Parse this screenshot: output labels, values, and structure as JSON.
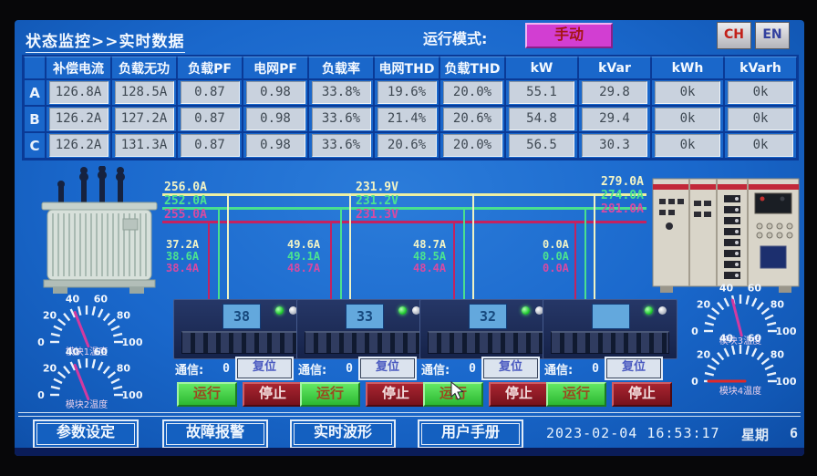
{
  "header": {
    "title": "状态监控>>实时数据",
    "run_mode_label": "运行模式:",
    "run_mode_value": "手动",
    "lang": [
      {
        "label": "CH"
      },
      {
        "label": "EN"
      }
    ]
  },
  "table": {
    "phases": [
      "A",
      "B",
      "C"
    ],
    "columns": [
      "补偿电流",
      "负载无功",
      "负载PF",
      "电网PF",
      "负载率",
      "电网THD",
      "负载THD",
      "kW",
      "kVar",
      "kWh",
      "kVarh"
    ],
    "rows": [
      [
        "126.8A",
        "128.5A",
        "0.87",
        "0.98",
        "33.8%",
        "19.6%",
        "20.0%",
        "55.1",
        "29.8",
        "0k",
        "0k"
      ],
      [
        "126.2A",
        "127.2A",
        "0.87",
        "0.98",
        "33.6%",
        "21.4%",
        "20.6%",
        "54.8",
        "29.4",
        "0k",
        "0k"
      ],
      [
        "126.2A",
        "131.3A",
        "0.87",
        "0.98",
        "33.6%",
        "20.6%",
        "20.0%",
        "56.5",
        "30.3",
        "0k",
        "0k"
      ]
    ]
  },
  "diagram": {
    "incoming_currents": [
      "256.0A",
      "252.0A",
      "255.0A"
    ],
    "bus_voltages": [
      "231.9V",
      "231.2V",
      "231.3V"
    ],
    "outgoing_currents": [
      "279.0A",
      "274.0A",
      "281.0A"
    ],
    "branch_currents": [
      [
        "37.2A",
        "38.6A",
        "38.4A"
      ],
      [
        "49.6A",
        "49.1A",
        "48.7A"
      ],
      [
        "48.7A",
        "48.5A",
        "48.4A"
      ],
      [
        "0.0A",
        "0.0A",
        "0.0A"
      ]
    ]
  },
  "modules": [
    {
      "display": "38",
      "comm_label": "通信:",
      "comm_value": "0",
      "reset_label": "复位",
      "run_label": "运行",
      "stop_label": "停止"
    },
    {
      "display": "33",
      "comm_label": "通信:",
      "comm_value": "0",
      "reset_label": "复位",
      "run_label": "运行",
      "stop_label": "停止"
    },
    {
      "display": "32",
      "comm_label": "通信:",
      "comm_value": "0",
      "reset_label": "复位",
      "run_label": "运行",
      "stop_label": "停止"
    },
    {
      "display": "",
      "comm_label": "通信:",
      "comm_value": "0",
      "reset_label": "复位",
      "run_label": "运行",
      "stop_label": "停止"
    }
  ],
  "gauges": [
    {
      "name": "模块1温度",
      "value": 38,
      "needle_color": "#d23aa0",
      "scale": [
        "0",
        "20",
        "40",
        "60",
        "80",
        "100"
      ]
    },
    {
      "name": "模块2温度",
      "value": 38,
      "needle_color": "#d23aa0",
      "scale": [
        "0",
        "20",
        "40",
        "60",
        "80",
        "100"
      ]
    },
    {
      "name": "模块3温度",
      "value": 42,
      "needle_color": "#d23aa0",
      "scale": [
        "0",
        "20",
        "40",
        "60",
        "80",
        "100"
      ]
    },
    {
      "name": "模块4温度",
      "value": 0,
      "needle_color": "#e02828",
      "scale": [
        "0",
        "20",
        "40",
        "60",
        "80",
        "100"
      ]
    }
  ],
  "footer": {
    "buttons": [
      "参数设定",
      "故障报警",
      "实时波形",
      "用户手册"
    ],
    "datetime": "2023-02-04 16:53:17",
    "week_label": "星期",
    "week_value": "6"
  },
  "colors": {
    "phase_a_line": "#edefa2",
    "phase_b_line": "#49e08e",
    "phase_c_line": "#c42260",
    "mode_button": "#d23ed2",
    "run_green": "#3ed43e",
    "stop_red": "#8f1822",
    "screen_blue": "#1a68cc"
  }
}
